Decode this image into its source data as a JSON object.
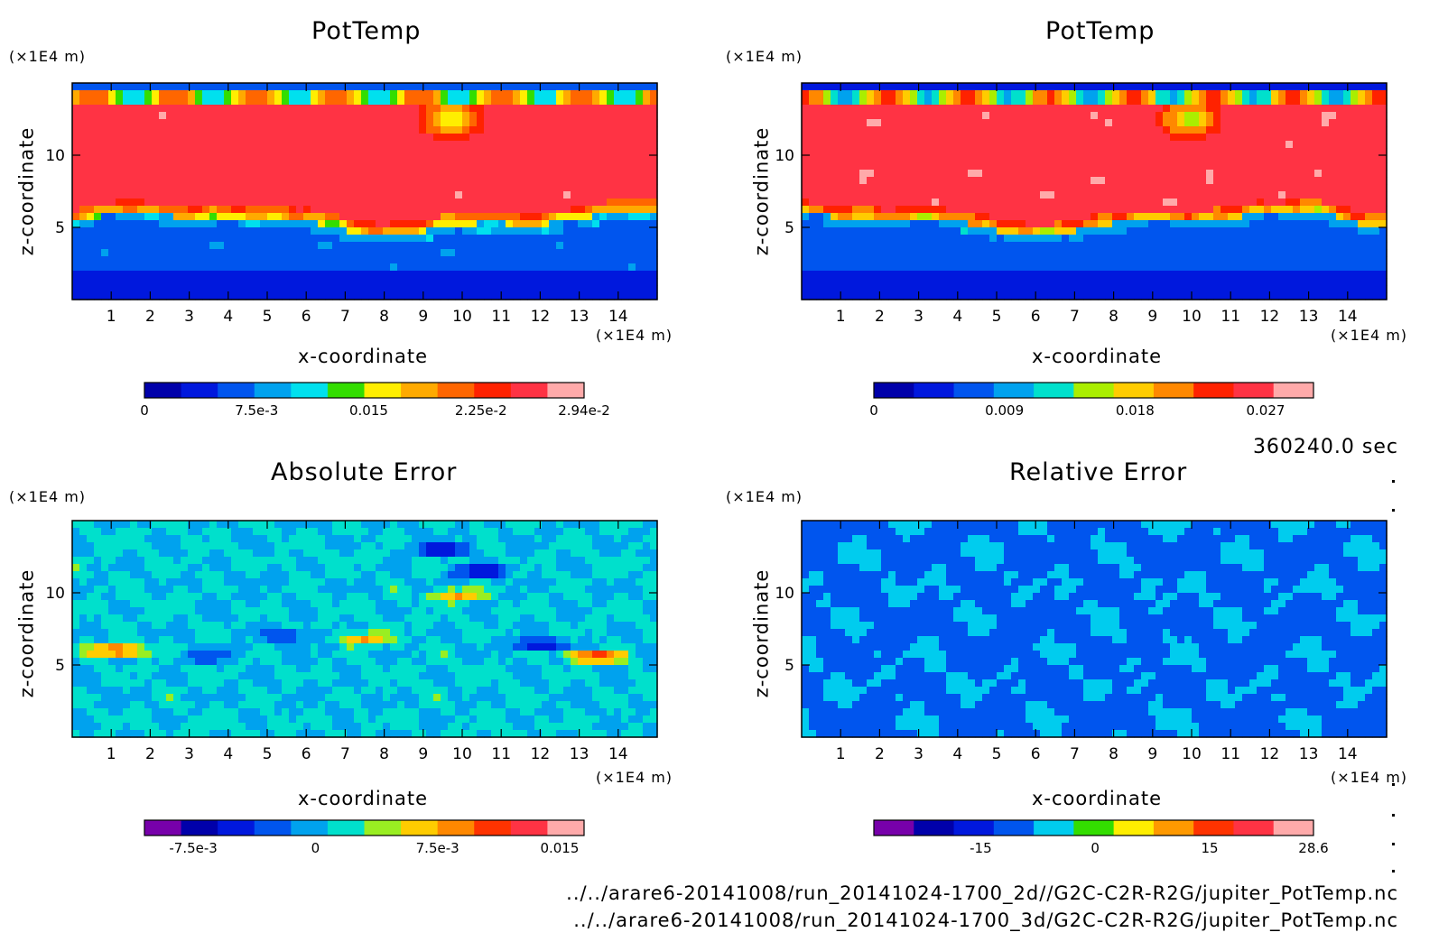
{
  "time_label": "360240.0 sec",
  "files": [
    "../../arare6-20141008/run_20141024-1700_2d//G2C-C2R-R2G/jupiter_PotTemp.nc",
    "../../arare6-20141008/run_20141024-1700_3d/G2C-C2R-R2G/jupiter_PotTemp.nc"
  ],
  "chart_data": [
    {
      "type": "heatmap",
      "title": "PotTemp",
      "xlabel": "x-coordinate",
      "ylabel": "z-coordinate",
      "x_unit": "(×1E4 m)",
      "y_unit": "(×1E4 m)",
      "xlim": [
        0,
        15
      ],
      "ylim": [
        0,
        15
      ],
      "x_ticks": [
        "1",
        "2",
        "3",
        "4",
        "5",
        "6",
        "7",
        "8",
        "9",
        "10",
        "11",
        "12",
        "13",
        "14"
      ],
      "y_ticks": [
        "5",
        "10"
      ],
      "colorbar": {
        "range": [
          0,
          0.0294
        ],
        "tick_labels": [
          "0",
          "7.5e-3",
          "0.015",
          "2.25e-2",
          "2.94e-2"
        ],
        "colors": [
          "#0000aa",
          "#0018dd",
          "#0055ee",
          "#00a2ee",
          "#00e0ee",
          "#33dd00",
          "#ffee00",
          "#ffaa00",
          "#ff6600",
          "#ff2200",
          "#ff3344",
          "#ffaaaa"
        ]
      }
    },
    {
      "type": "heatmap",
      "title": "PotTemp",
      "xlabel": "x-coordinate",
      "ylabel": "z-coordinate",
      "x_unit": "(×1E4 m)",
      "y_unit": "(×1E4 m)",
      "xlim": [
        0,
        15
      ],
      "ylim": [
        0,
        15
      ],
      "x_ticks": [
        "1",
        "2",
        "3",
        "4",
        "5",
        "6",
        "7",
        "8",
        "9",
        "10",
        "11",
        "12",
        "13",
        "14"
      ],
      "y_ticks": [
        "5",
        "10"
      ],
      "colorbar": {
        "range": [
          0,
          0.0303
        ],
        "tick_labels": [
          "0",
          "0.009",
          "0.018",
          "0.027"
        ],
        "colors": [
          "#0000aa",
          "#0018dd",
          "#0055ee",
          "#00a2ee",
          "#00e0cc",
          "#aaee00",
          "#ffcc00",
          "#ff8800",
          "#ff2200",
          "#ff3344",
          "#ffaaaa"
        ]
      }
    },
    {
      "type": "heatmap",
      "title": "Absolute Error",
      "xlabel": "x-coordinate",
      "ylabel": "z-coordinate",
      "x_unit": "(×1E4 m)",
      "y_unit": "(×1E4 m)",
      "xlim": [
        0,
        15
      ],
      "ylim": [
        0,
        15
      ],
      "x_ticks": [
        "1",
        "2",
        "3",
        "4",
        "5",
        "6",
        "7",
        "8",
        "9",
        "10",
        "11",
        "12",
        "13",
        "14"
      ],
      "y_ticks": [
        "5",
        "10"
      ],
      "colorbar": {
        "range": [
          -0.0105,
          0.0165
        ],
        "tick_labels": [
          "-7.5e-3",
          "0",
          "7.5e-3",
          "0.015"
        ],
        "colors": [
          "#7700aa",
          "#0000aa",
          "#0018dd",
          "#0055ee",
          "#00a2ee",
          "#00e0cc",
          "#99ee22",
          "#ffcc00",
          "#ff8800",
          "#ff3300",
          "#ff3344",
          "#ffaaaa"
        ]
      }
    },
    {
      "type": "heatmap",
      "title": "Relative Error",
      "xlabel": "x-coordinate",
      "ylabel": "z-coordinate",
      "x_unit": "(×1E4 m)",
      "y_unit": "(×1E4 m)",
      "xlim": [
        0,
        15
      ],
      "ylim": [
        0,
        15
      ],
      "x_ticks": [
        "1",
        "2",
        "3",
        "4",
        "5",
        "6",
        "7",
        "8",
        "9",
        "10",
        "11",
        "12",
        "13",
        "14"
      ],
      "y_ticks": [
        "5",
        "10"
      ],
      "colorbar": {
        "range": [
          -29,
          28.6
        ],
        "tick_labels": [
          "-15",
          "0",
          "15",
          "28.6"
        ],
        "colors": [
          "#7700aa",
          "#0000aa",
          "#0018dd",
          "#0055ee",
          "#00ccee",
          "#33dd00",
          "#ffee00",
          "#ff9900",
          "#ff3300",
          "#ff3344",
          "#ffaaaa"
        ]
      }
    }
  ]
}
